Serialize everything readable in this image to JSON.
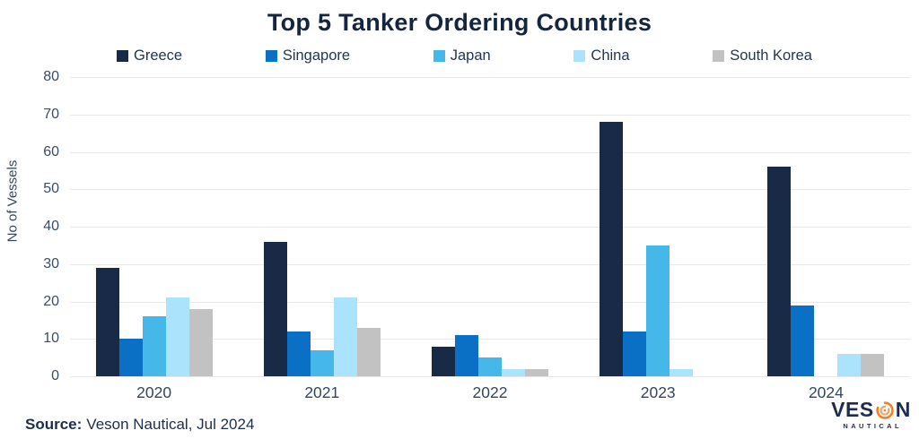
{
  "title": "Top 5 Tanker Ordering Countries",
  "chart_data": {
    "type": "bar",
    "categories": [
      "2020",
      "2021",
      "2022",
      "2023",
      "2024"
    ],
    "series": [
      {
        "name": "Greece",
        "color": "#182A45",
        "values": [
          29,
          36,
          8,
          68,
          56
        ]
      },
      {
        "name": "Singapore",
        "color": "#0A70C6",
        "values": [
          10,
          12,
          11,
          12,
          19
        ]
      },
      {
        "name": "Japan",
        "color": "#45B7E8",
        "values": [
          16,
          7,
          5,
          35,
          0
        ]
      },
      {
        "name": "China",
        "color": "#ACE3FC",
        "values": [
          21,
          21,
          2,
          2,
          6
        ]
      },
      {
        "name": "South Korea",
        "color": "#C2C2C2",
        "values": [
          18,
          13,
          2,
          0,
          6
        ]
      }
    ],
    "title": "Top 5 Tanker Ordering Countries",
    "xlabel": "",
    "ylabel": "No of Vessels",
    "ylim": [
      0,
      80
    ],
    "ytick_step": 10,
    "grid": true,
    "legend_position": "top"
  },
  "footer": {
    "source_label": "Source:",
    "source_text": "Veson Nautical, Jul 2024"
  },
  "logo": {
    "brand_pre": "VES",
    "brand_post": "N",
    "brand_sub": "NAUTICAL",
    "o_icon": "swirl-o-icon",
    "orange": "#F58025",
    "orange_light": "#F9A167",
    "navy": "#1E2D4E"
  },
  "style_colors": {
    "title_text": "#16253E",
    "axis_text": "#3A4D63",
    "gridline": "#E9E9E9",
    "background": "#FFFFFF"
  }
}
